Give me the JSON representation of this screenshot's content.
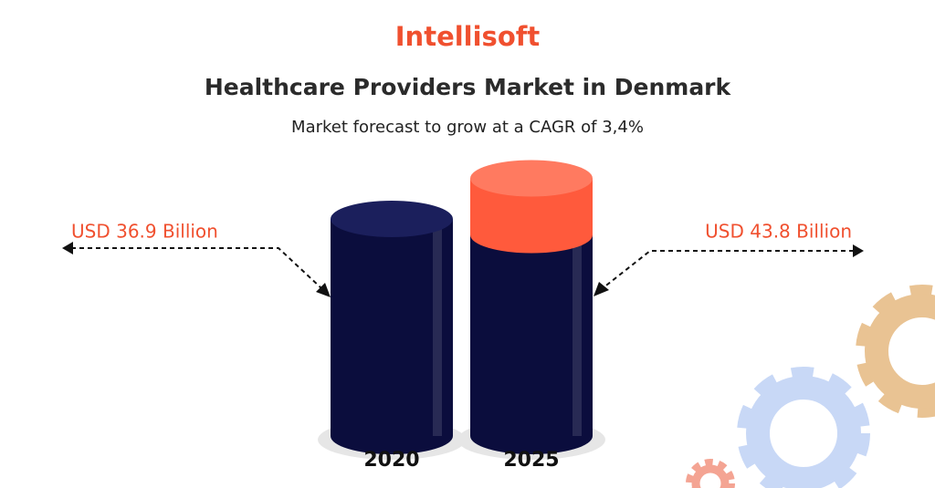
{
  "brand": "Intellisoft",
  "chart_data": {
    "type": "bar",
    "title": "Healthcare Providers Market in Denmark",
    "subtitle": "Market forecast to grow at a CAGR of 3,4%",
    "categories": [
      "2020",
      "2025"
    ],
    "values": [
      36.9,
      43.8
    ],
    "value_labels": [
      "USD 36.9 Billion",
      "USD 43.8 Billion"
    ],
    "color": "#0b0d3d"
  }
}
